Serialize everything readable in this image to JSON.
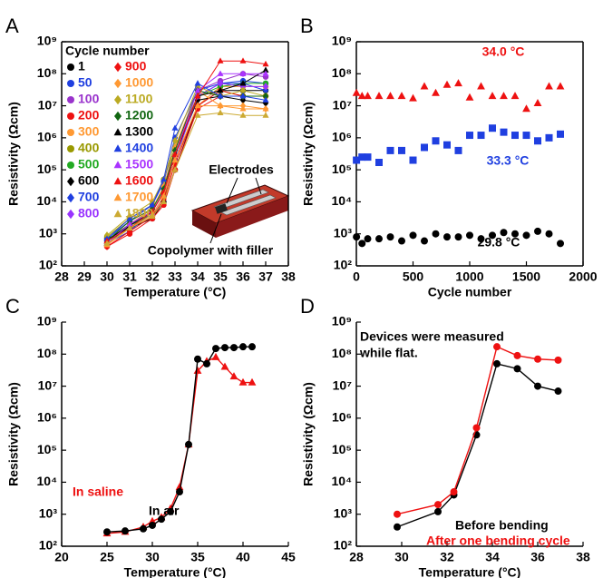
{
  "chart_data": [
    {
      "type": "line",
      "panel": "A",
      "xlabel": "Temperature (°C)",
      "ylabel": "Resistivity (Ωcm)",
      "log_y": true,
      "frame": true,
      "legend_title": "Cycle number",
      "annotations": [
        "Electrodes",
        "Copolymer with filler"
      ],
      "xlim": [
        28,
        38
      ],
      "xticks": [
        28,
        29,
        30,
        31,
        32,
        33,
        34,
        35,
        36,
        37,
        38
      ],
      "ylim": [
        100,
        1000000000
      ],
      "yticks": [
        {
          "value": 100,
          "label": "10²"
        },
        {
          "value": 1000,
          "label": "10³"
        },
        {
          "value": 10000,
          "label": "10⁴"
        },
        {
          "value": 100000,
          "label": "10⁵"
        },
        {
          "value": 1000000,
          "label": "10⁶"
        },
        {
          "value": 10000000,
          "label": "10⁷"
        },
        {
          "value": 100000000,
          "label": "10⁸"
        },
        {
          "value": 1000000000,
          "label": "10⁹"
        }
      ],
      "x": [
        30,
        31,
        32,
        32.5,
        33,
        34,
        35,
        36,
        37
      ],
      "series": [
        {
          "name": "1",
          "color": "#000000",
          "marker": "circle",
          "values": [
            700,
            1500,
            3000,
            10000,
            100000,
            10000000,
            30000000,
            30000000,
            30000000
          ]
        },
        {
          "name": "50",
          "color": "#1f3fe0",
          "marker": "circle",
          "values": [
            500,
            1200,
            5000,
            20000,
            300000,
            20000000,
            50000000,
            60000000,
            50000000
          ]
        },
        {
          "name": "100",
          "color": "#9933cc",
          "marker": "circle",
          "values": [
            600,
            2000,
            6000,
            30000,
            500000,
            30000000,
            60000000,
            100000000,
            80000000
          ]
        },
        {
          "name": "200",
          "color": "#ee1111",
          "marker": "circle",
          "values": [
            400,
            1000,
            3000,
            8000,
            100000,
            8000000,
            20000000,
            20000000,
            20000000
          ]
        },
        {
          "name": "300",
          "color": "#ff9933",
          "marker": "circle",
          "values": [
            450,
            1500,
            5000,
            20000,
            200000,
            10000000,
            40000000,
            40000000,
            40000000
          ]
        },
        {
          "name": "400",
          "color": "#999900",
          "marker": "circle",
          "values": [
            800,
            3000,
            8000,
            50000,
            500000,
            20000000,
            30000000,
            20000000,
            20000000
          ]
        },
        {
          "name": "500",
          "color": "#22aa22",
          "marker": "circle",
          "values": [
            500,
            1800,
            4000,
            15000,
            200000,
            20000000,
            40000000,
            50000000,
            50000000
          ]
        },
        {
          "name": "600",
          "color": "#000000",
          "marker": "diamond",
          "values": [
            600,
            2000,
            5000,
            20000,
            300000,
            15000000,
            20000000,
            15000000,
            12000000
          ]
        },
        {
          "name": "700",
          "color": "#1f3fe0",
          "marker": "diamond",
          "values": [
            700,
            2500,
            8000,
            40000,
            1000000,
            30000000,
            50000000,
            50000000,
            30000000
          ]
        },
        {
          "name": "800",
          "color": "#9933ff",
          "marker": "diamond",
          "values": [
            500,
            1500,
            4000,
            15000,
            200000,
            20000000,
            50000000,
            40000000,
            40000000
          ]
        },
        {
          "name": "900",
          "color": "#ee1111",
          "marker": "diamond",
          "values": [
            400,
            1200,
            3500,
            12000,
            150000,
            10000000,
            30000000,
            20000000,
            20000000
          ]
        },
        {
          "name": "1000",
          "color": "#ff9933",
          "marker": "diamond",
          "values": [
            500,
            2000,
            6000,
            30000,
            500000,
            30000000,
            10000000,
            10000000,
            8000000
          ]
        },
        {
          "name": "1100",
          "color": "#bbaa22",
          "marker": "diamond",
          "values": [
            900,
            3500,
            10000,
            50000,
            800000,
            40000000,
            20000000,
            30000000,
            20000000
          ]
        },
        {
          "name": "1200",
          "color": "#116611",
          "marker": "diamond",
          "values": [
            600,
            2500,
            6000,
            25000,
            400000,
            30000000,
            20000000,
            20000000,
            20000000
          ]
        },
        {
          "name": "1300",
          "color": "#000000",
          "marker": "triangle",
          "values": [
            500,
            1800,
            5000,
            20000,
            300000,
            20000000,
            30000000,
            50000000,
            130000000
          ]
        },
        {
          "name": "1400",
          "color": "#1f3fe0",
          "marker": "triangle",
          "values": [
            700,
            3000,
            8000,
            50000,
            2000000,
            50000000,
            20000000,
            20000000,
            15000000
          ]
        },
        {
          "name": "1500",
          "color": "#aa33ff",
          "marker": "triangle",
          "values": [
            500,
            2000,
            5000,
            20000,
            300000,
            30000000,
            100000000,
            100000000,
            100000000
          ]
        },
        {
          "name": "1600",
          "color": "#ee1111",
          "marker": "triangle",
          "values": [
            600,
            1500,
            5000,
            20000,
            300000,
            20000000,
            250000000,
            250000000,
            200000000
          ]
        },
        {
          "name": "1700",
          "color": "#ff9933",
          "marker": "triangle",
          "values": [
            450,
            1500,
            4000,
            15000,
            200000,
            10000000,
            10000000,
            8000000,
            8000000
          ]
        },
        {
          "name": "1800",
          "color": "#ccaa33",
          "marker": "triangle",
          "values": [
            500,
            1500,
            3500,
            10000,
            100000,
            5000000,
            6000000,
            5000000,
            5000000
          ]
        }
      ]
    },
    {
      "type": "scatter",
      "panel": "B",
      "xlabel": "Cycle number",
      "ylabel": "Resistivity (Ωcm)",
      "log_y": true,
      "frame": true,
      "xlim": [
        0,
        2000
      ],
      "xticks": [
        0,
        500,
        1000,
        1500,
        2000
      ],
      "ylim": [
        100,
        1000000000
      ],
      "yticks": [
        {
          "value": 100,
          "label": "10²"
        },
        {
          "value": 1000,
          "label": "10³"
        },
        {
          "value": 10000,
          "label": "10⁴"
        },
        {
          "value": 100000,
          "label": "10⁵"
        },
        {
          "value": 1000000,
          "label": "10⁶"
        },
        {
          "value": 10000000,
          "label": "10⁷"
        },
        {
          "value": 100000000,
          "label": "10⁸"
        },
        {
          "value": 1000000000,
          "label": "10⁹"
        }
      ],
      "x": [
        1,
        50,
        100,
        200,
        300,
        400,
        500,
        600,
        700,
        800,
        900,
        1000,
        1100,
        1200,
        1300,
        1400,
        1500,
        1600,
        1700,
        1800
      ],
      "series": [
        {
          "name": "34.0 °C",
          "color": "#ee1111",
          "marker": "triangle",
          "values": [
            25000000,
            20000000,
            20000000,
            20000000,
            20000000,
            20000000,
            17000000,
            40000000,
            25000000,
            45000000,
            50000000,
            18000000,
            40000000,
            20000000,
            20000000,
            20000000,
            8000000,
            12000000,
            40000000,
            40000000
          ]
        },
        {
          "name": "33.3 °C",
          "color": "#1f3fe0",
          "marker": "square",
          "values": [
            200000,
            250000,
            250000,
            170000,
            400000,
            400000,
            200000,
            500000,
            800000,
            600000,
            400000,
            1200000,
            1200000,
            2000000,
            1500000,
            1200000,
            1200000,
            800000,
            1000000,
            1300000
          ]
        },
        {
          "name": "29.8 °C",
          "color": "#000000",
          "marker": "circle",
          "values": [
            800,
            500,
            700,
            700,
            800,
            600,
            900,
            600,
            1000,
            800,
            800,
            900,
            700,
            900,
            1100,
            1000,
            900,
            1200,
            1000,
            500
          ]
        }
      ]
    },
    {
      "type": "line",
      "panel": "C",
      "xlabel": "Temperature (°C)",
      "ylabel": "Resistivity (Ωcm)",
      "log_y": true,
      "frame": false,
      "xlim": [
        20,
        45
      ],
      "xticks": [
        20,
        25,
        30,
        35,
        40,
        45
      ],
      "ylim": [
        100,
        1000000000
      ],
      "yticks": [
        {
          "value": 100,
          "label": "10²"
        },
        {
          "value": 1000,
          "label": "10³"
        },
        {
          "value": 10000,
          "label": "10⁴"
        },
        {
          "value": 100000,
          "label": "10⁵"
        },
        {
          "value": 1000000,
          "label": "10⁶"
        },
        {
          "value": 10000000,
          "label": "10⁷"
        },
        {
          "value": 100000000,
          "label": "10⁸"
        },
        {
          "value": 1000000000,
          "label": "10⁹"
        }
      ],
      "x": [
        25,
        27,
        29,
        30,
        31,
        32,
        33,
        34,
        35,
        36,
        37,
        38,
        39,
        40,
        41
      ],
      "series": [
        {
          "name": "In saline",
          "color": "#ee1111",
          "marker": "triangle",
          "values": [
            250,
            280,
            400,
            600,
            800,
            1500,
            7000,
            150000,
            30000000,
            60000000,
            80000000,
            40000000,
            20000000,
            13000000,
            13000000
          ]
        },
        {
          "name": "In air",
          "color": "#000000",
          "marker": "circle",
          "values": [
            280,
            300,
            350,
            450,
            700,
            1200,
            5000,
            150000,
            70000000,
            50000000,
            150000000,
            160000000,
            160000000,
            170000000,
            170000000
          ]
        }
      ]
    },
    {
      "type": "line",
      "panel": "D",
      "xlabel": "Temperature (°C)",
      "ylabel": "Resistivity (Ωcm)",
      "log_y": true,
      "frame": false,
      "annotations": [
        "Devices were measured",
        "while flat."
      ],
      "xlim": [
        28,
        38
      ],
      "xticks": [
        28,
        30,
        32,
        34,
        36,
        38
      ],
      "ylim": [
        100,
        1000000000
      ],
      "yticks": [
        {
          "value": 100,
          "label": "10²"
        },
        {
          "value": 1000,
          "label": "10³"
        },
        {
          "value": 10000,
          "label": "10⁴"
        },
        {
          "value": 100000,
          "label": "10⁵"
        },
        {
          "value": 1000000,
          "label": "10⁶"
        },
        {
          "value": 10000000,
          "label": "10⁷"
        },
        {
          "value": 100000000,
          "label": "10⁸"
        },
        {
          "value": 1000000000,
          "label": "10⁹"
        }
      ],
      "x": [
        29.8,
        31.6,
        32.3,
        33.3,
        34.2,
        35.1,
        36,
        36.9
      ],
      "series": [
        {
          "name": "Before bending",
          "color": "#000000",
          "marker": "circle",
          "values": [
            400,
            1200,
            4000,
            300000,
            50000000,
            35000000,
            10000000,
            7000000
          ]
        },
        {
          "name": "After one bending cycle",
          "color": "#ee1111",
          "marker": "circle",
          "values": [
            1000,
            2000,
            5000,
            500000,
            170000000,
            90000000,
            70000000,
            65000000
          ]
        }
      ]
    }
  ]
}
